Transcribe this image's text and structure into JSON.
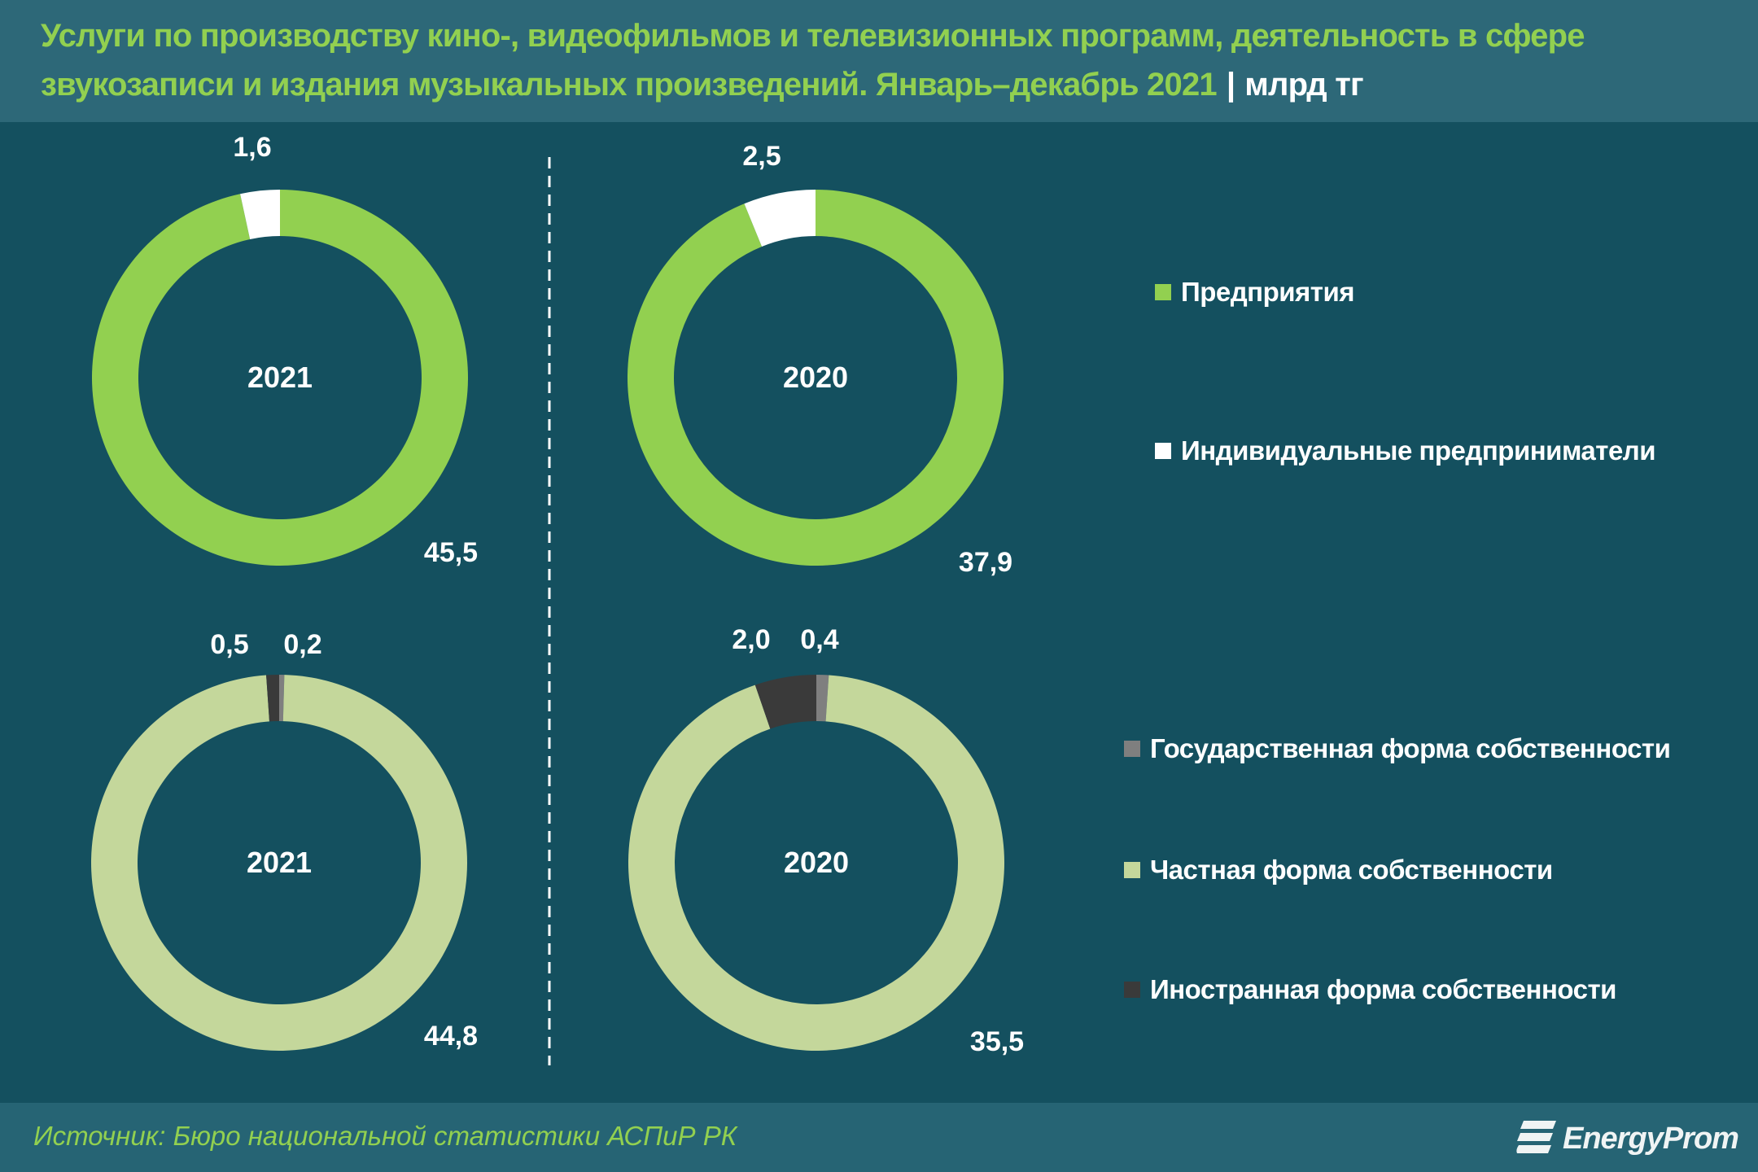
{
  "header": {
    "title_line1": "Услуги по производству кино-, видеофильмов и телевизионных программ, деятельность в сфере",
    "title_line2": "звукозаписи и издания музыкальных произведений. Январь–декабрь 2021",
    "separator": "|",
    "unit": "млрд тг"
  },
  "footer": {
    "source": "Источник: Бюро национальной статистики АСПиР РК",
    "logo_text": "EnergyProm"
  },
  "legend_top": [
    {
      "label": "Предприятия",
      "color": "#92d050"
    },
    {
      "label": "Индивидуальные предприниматели",
      "color": "#ffffff"
    }
  ],
  "legend_bottom": [
    {
      "label": "Государственная форма собственности",
      "color": "#7f7f7f"
    },
    {
      "label": "Частная форма собственности",
      "color": "#c4d79b"
    },
    {
      "label": "Иностранная форма собственности",
      "color": "#3a3a3a"
    }
  ],
  "chart_data": [
    {
      "type": "pie",
      "variant": "donut",
      "center_label": "2021",
      "slices": [
        {
          "name": "Предприятия",
          "value": 45.5,
          "label": "45,5",
          "color": "#92d050"
        },
        {
          "name": "Индивидуальные предприниматели",
          "value": 1.6,
          "label": "1,6",
          "color": "#ffffff"
        }
      ]
    },
    {
      "type": "pie",
      "variant": "donut",
      "center_label": "2020",
      "slices": [
        {
          "name": "Предприятия",
          "value": 37.9,
          "label": "37,9",
          "color": "#92d050"
        },
        {
          "name": "Индивидуальные предприниматели",
          "value": 2.5,
          "label": "2,5",
          "color": "#ffffff"
        }
      ]
    },
    {
      "type": "pie",
      "variant": "donut",
      "center_label": "2021",
      "slices": [
        {
          "name": "Государственная форма собственности",
          "value": 0.2,
          "label": "0,2",
          "color": "#7f7f7f"
        },
        {
          "name": "Частная форма собственности",
          "value": 44.8,
          "label": "44,8",
          "color": "#c4d79b"
        },
        {
          "name": "Иностранная форма собственности",
          "value": 0.5,
          "label": "0,5",
          "color": "#3a3a3a"
        }
      ]
    },
    {
      "type": "pie",
      "variant": "donut",
      "center_label": "2020",
      "slices": [
        {
          "name": "Государственная форма собственности",
          "value": 0.4,
          "label": "0,4",
          "color": "#7f7f7f"
        },
        {
          "name": "Частная форма собственности",
          "value": 35.5,
          "label": "35,5",
          "color": "#c4d79b"
        },
        {
          "name": "Иностранная форма собственности",
          "value": 2.0,
          "label": "2,0",
          "color": "#3a3a3a"
        }
      ]
    }
  ]
}
